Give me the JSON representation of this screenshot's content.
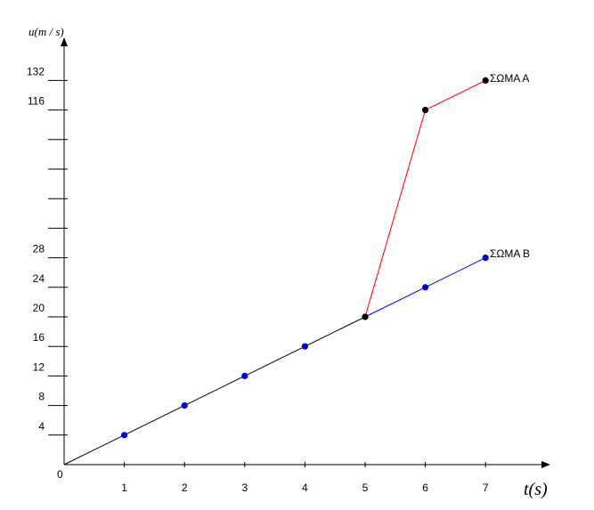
{
  "chart_data": {
    "type": "line",
    "xlabel": "t(s)",
    "ylabel": "u(m / s)",
    "origin_label": "0",
    "x_ticks": [
      "1",
      "2",
      "3",
      "4",
      "5",
      "6",
      "7"
    ],
    "y_ticks": [
      {
        "label": "4",
        "value": 4
      },
      {
        "label": "8",
        "value": 8
      },
      {
        "label": "12",
        "value": 12
      },
      {
        "label": "16",
        "value": 16
      },
      {
        "label": "20",
        "value": 20
      },
      {
        "label": "24",
        "value": 24
      },
      {
        "label": "28",
        "value": 28
      },
      {
        "label": "",
        "value": null
      },
      {
        "label": "",
        "value": null
      },
      {
        "label": "",
        "value": null
      },
      {
        "label": "",
        "value": null
      },
      {
        "label": "116",
        "value": 116
      },
      {
        "label": "132",
        "value": 132
      }
    ],
    "y_axis_note": "axis is broken between 28 and 116; unlabeled ticks between them",
    "grid": false,
    "series": [
      {
        "name": "ΣΩΜΑ Α",
        "color": "#ff0000",
        "x": [
          5,
          6,
          7
        ],
        "y": [
          20,
          116,
          132
        ],
        "marker_color": "#000000"
      },
      {
        "name": "ΣΩΜΑ Β",
        "color": "#0000ff",
        "x": [
          5,
          6,
          7
        ],
        "y": [
          20,
          24,
          28
        ],
        "marker_color": "#0000cc"
      },
      {
        "name": "",
        "color": "#000000",
        "x": [
          0,
          1,
          2,
          3,
          4,
          5
        ],
        "y": [
          0,
          4,
          8,
          12,
          16,
          20
        ],
        "marker_color": "#0000cc"
      }
    ],
    "axis_color": "#000000"
  }
}
